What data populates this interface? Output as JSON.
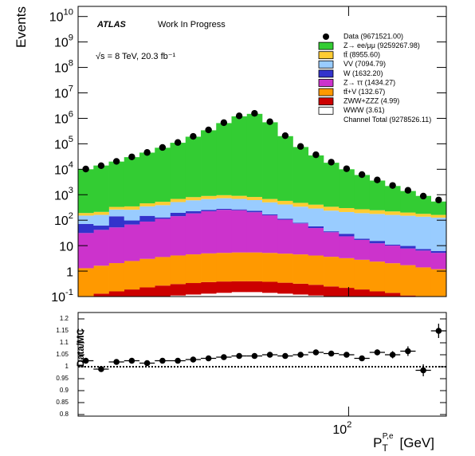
{
  "chart_data": [
    {
      "type": "histogram",
      "ylabel": "Events",
      "annotations": [
        "ATLAS",
        "Work In Progress",
        "√s = 8 TeV, 20.3 fb⁻¹"
      ],
      "xscale": "log",
      "yscale": "log",
      "xlim": [
        25,
        165
      ],
      "ylim": [
        0.1,
        25000000000
      ],
      "yticks": [
        {
          "value": 0.1,
          "label": "10^-1"
        },
        1,
        10,
        {
          "value": 100,
          "label": "10^2"
        },
        {
          "value": 1000,
          "label": "10^3"
        },
        {
          "value": 10000,
          "label": "10^4"
        },
        {
          "value": 100000,
          "label": "10^5"
        },
        {
          "value": 1000000,
          "label": "10^6"
        },
        {
          "value": 10000000,
          "label": "10^7"
        },
        {
          "value": 100000000,
          "label": "10^8"
        },
        {
          "value": 1000000000,
          "label": "10^9"
        },
        {
          "value": 10000000000,
          "label": "10^10"
        }
      ],
      "bins": [
        25,
        27.05,
        29.26,
        31.65,
        34.24,
        37.04,
        40.07,
        43.35,
        46.9,
        50.73,
        54.88,
        59.37,
        64.23,
        69.48,
        75.17,
        81.31,
        87.97,
        95.16,
        102.94,
        111.36,
        120.47,
        130.33,
        140.99,
        152.52,
        165
      ],
      "legend": "upper right",
      "data": {
        "name": "Data (9671521.00)",
        "color": "#000000",
        "values": [
          10240,
          13870,
          20430,
          30690,
          45730,
          71780,
          112730,
          195700,
          351900,
          675960,
          1253900,
          1567600,
          735190,
          208970,
          78620,
          37110,
          19030,
          10500,
          6180,
          3810,
          2310,
          1490,
          884,
          622
        ]
      },
      "series": [
        {
          "name": "Z→ ee/μμ (9259267.98)",
          "color": "#33cc33",
          "values": [
            9800,
            13800,
            19700,
            29600,
            44600,
            69500,
            109300,
            189200,
            339100,
            649000,
            1199000,
            1499300,
            699500,
            199400,
            74400,
            34600,
            17700,
            9700,
            5700,
            3350,
            1980,
            1200,
            720,
            380
          ]
        },
        {
          "name": "tt̄ (8955.60)",
          "color": "#ffcc33",
          "values": [
            40,
            50,
            70,
            90,
            110,
            140,
            170,
            200,
            220,
            230,
            220,
            200,
            180,
            160,
            140,
            120,
            100,
            90,
            80,
            70,
            60,
            50,
            40,
            35
          ]
        },
        {
          "name": "VV (7094.79)",
          "color": "#99ccff",
          "values": [
            80,
            100,
            120,
            160,
            200,
            260,
            320,
            380,
            420,
            450,
            420,
            380,
            330,
            300,
            260,
            230,
            200,
            180,
            170,
            160,
            150,
            140,
            130,
            120
          ]
        },
        {
          "name": "W (1632.20)",
          "color": "#3333cc",
          "values": [
            40,
            20,
            90,
            30,
            60,
            15,
            50,
            40,
            30,
            25,
            20,
            30,
            15,
            10,
            5,
            8,
            3,
            6,
            2,
            3,
            1,
            2,
            1,
            1
          ]
        },
        {
          "name": "Z→ ττ (1434.27)",
          "color": "#cc33cc",
          "values": [
            30,
            40,
            50,
            65,
            85,
            110,
            140,
            180,
            220,
            250,
            240,
            200,
            150,
            100,
            70,
            45,
            30,
            20,
            14,
            10,
            8,
            6,
            5,
            4
          ]
        },
        {
          "name": "tt̄+V (132.67)",
          "color": "#ff9900",
          "values": [
            1.2,
            1.5,
            1.9,
            2.3,
            2.8,
            3.3,
            3.8,
            4.2,
            4.6,
            4.8,
            5.0,
            5.0,
            4.8,
            4.5,
            4.2,
            3.8,
            3.4,
            3.0,
            2.6,
            2.2,
            1.9,
            1.6,
            1.3,
            1.1
          ]
        },
        {
          "name": "ZWW+ZZZ (4.99)",
          "color": "#cc0000",
          "values": [
            0.05,
            0.07,
            0.09,
            0.11,
            0.14,
            0.17,
            0.2,
            0.22,
            0.24,
            0.25,
            0.25,
            0.25,
            0.24,
            0.22,
            0.2,
            0.18,
            0.15,
            0.13,
            0.11,
            0.09,
            0.08,
            0.06,
            0.05,
            0.05
          ]
        },
        {
          "name": "WWW (3.61)",
          "color": "#ffffff",
          "values": [
            0.05,
            0.06,
            0.07,
            0.08,
            0.09,
            0.1,
            0.11,
            0.12,
            0.13,
            0.14,
            0.15,
            0.15,
            0.14,
            0.13,
            0.12,
            0.11,
            0.1,
            0.09,
            0.08,
            0.07,
            0.06,
            0.05,
            0.05,
            0.04
          ]
        }
      ],
      "channel_total": "Channel Total  (9278526.11)"
    },
    {
      "type": "errorbar",
      "ylabel": "Data/MC",
      "xlabel": "P",
      "xlabel_sub": "T",
      "xlabel_sup": "P,e",
      "xlabel_unit": "[GeV]",
      "xscale": "log",
      "xlim": [
        25,
        165
      ],
      "xticks": [
        {
          "value": 100,
          "label": "10^2"
        }
      ],
      "ylim": [
        0.8,
        1.2
      ],
      "yticks": [
        0.8,
        0.85,
        0.9,
        0.95,
        1,
        1.05,
        1.1,
        1.15,
        1.2
      ],
      "reference": 1,
      "color": "#000000",
      "values": [
        1.025,
        0.99,
        1.02,
        1.025,
        1.015,
        1.025,
        1.025,
        1.03,
        1.035,
        1.04,
        1.045,
        1.045,
        1.05,
        1.045,
        1.05,
        1.06,
        1.055,
        1.05,
        1.035,
        1.06,
        1.05,
        1.065,
        0.985,
        1.15
      ],
      "errors": [
        0.008,
        0.006,
        0.005,
        0.005,
        0.004,
        0.004,
        0.003,
        0.003,
        0.003,
        0.003,
        0.003,
        0.003,
        0.003,
        0.003,
        0.004,
        0.005,
        0.006,
        0.008,
        0.01,
        0.012,
        0.015,
        0.02,
        0.025,
        0.03
      ]
    }
  ]
}
